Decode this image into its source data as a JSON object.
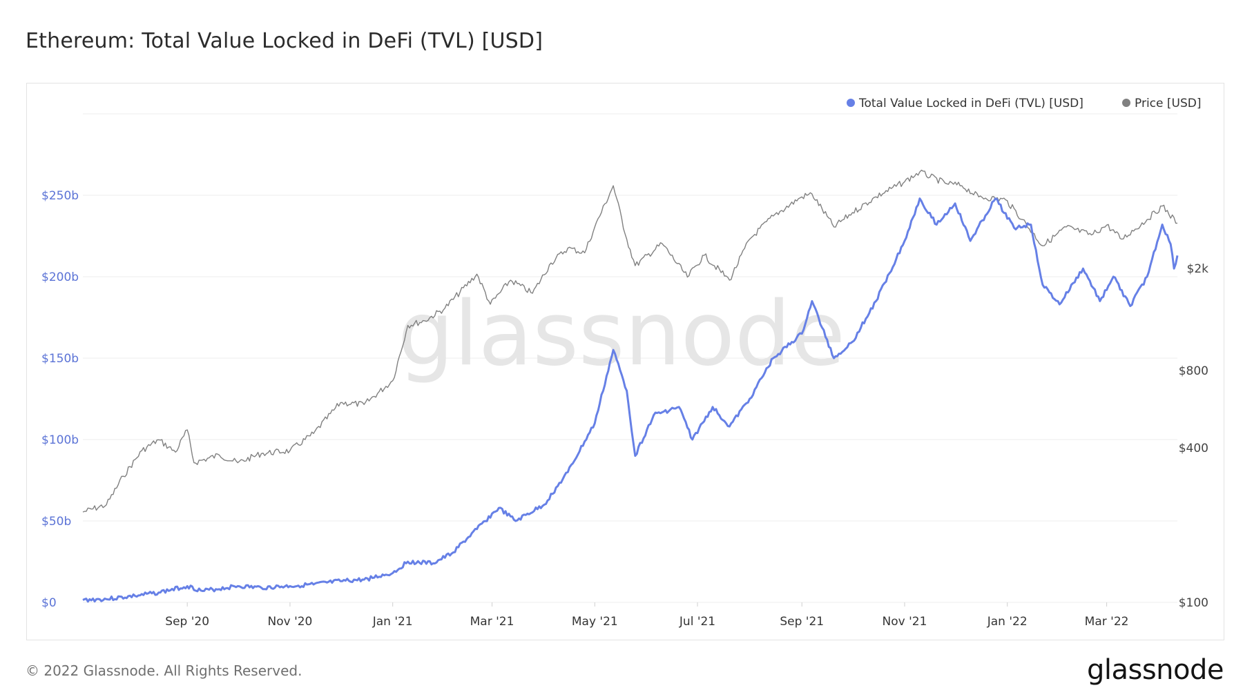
{
  "header": {
    "title": "Ethereum: Total Value Locked in DeFi (TVL) [USD]"
  },
  "footer": {
    "copyright": "© 2022 Glassnode. All Rights Reserved.",
    "brand": "glassnode"
  },
  "watermark": "glassnode",
  "colors": {
    "tvl": "#6680e6",
    "price": "#808080",
    "grid": "#ececec",
    "left_axis_text": "#5b73d6",
    "right_axis_text": "#444444"
  },
  "chart_data": {
    "type": "line",
    "title": "Ethereum: Total Value Locked in DeFi (TVL) [USD]",
    "x_ticks": [
      {
        "date": "2020-09-01",
        "label": "Sep '20"
      },
      {
        "date": "2020-11-01",
        "label": "Nov '20"
      },
      {
        "date": "2021-01-01",
        "label": "Jan '21"
      },
      {
        "date": "2021-03-01",
        "label": "Mar '21"
      },
      {
        "date": "2021-05-01",
        "label": "May '21"
      },
      {
        "date": "2021-07-01",
        "label": "Jul '21"
      },
      {
        "date": "2021-09-01",
        "label": "Sep '21"
      },
      {
        "date": "2021-11-01",
        "label": "Nov '21"
      },
      {
        "date": "2022-01-01",
        "label": "Jan '22"
      },
      {
        "date": "2022-03-01",
        "label": "Mar '22"
      }
    ],
    "x_range": [
      "2020-07-01",
      "2022-04-12"
    ],
    "left_axis": {
      "scale": "linear",
      "range": [
        0,
        300
      ],
      "ticks": [
        {
          "value": 0,
          "label": "$0"
        },
        {
          "value": 50,
          "label": "$50b"
        },
        {
          "value": 100,
          "label": "$100b"
        },
        {
          "value": 150,
          "label": "$150b"
        },
        {
          "value": 200,
          "label": "$200b"
        },
        {
          "value": 250,
          "label": "$250b"
        }
      ]
    },
    "right_axis": {
      "scale": "log",
      "range": [
        100,
        8000
      ],
      "ticks": [
        {
          "value": 100,
          "label": "$100"
        },
        {
          "value": 400,
          "label": "$400"
        },
        {
          "value": 800,
          "label": "$800"
        },
        {
          "value": 2000,
          "label": "$2k"
        }
      ]
    },
    "grid": true,
    "legend": "top-right",
    "series": [
      {
        "name": "Total Value Locked in DeFi (TVL) [USD]",
        "axis": "left",
        "unit": "billion USD",
        "points": [
          [
            "2020-07-01",
            1.5
          ],
          [
            "2020-07-15",
            2
          ],
          [
            "2020-08-01",
            4
          ],
          [
            "2020-08-15",
            6
          ],
          [
            "2020-09-01",
            10
          ],
          [
            "2020-09-10",
            7
          ],
          [
            "2020-10-01",
            10
          ],
          [
            "2020-10-15",
            9
          ],
          [
            "2020-11-01",
            10
          ],
          [
            "2020-11-15",
            11
          ],
          [
            "2020-12-01",
            13
          ],
          [
            "2020-12-15",
            14
          ],
          [
            "2021-01-01",
            18
          ],
          [
            "2021-01-10",
            25
          ],
          [
            "2021-01-25",
            24
          ],
          [
            "2021-02-05",
            30
          ],
          [
            "2021-02-20",
            45
          ],
          [
            "2021-03-05",
            58
          ],
          [
            "2021-03-15",
            50
          ],
          [
            "2021-04-01",
            60
          ],
          [
            "2021-04-15",
            80
          ],
          [
            "2021-05-01",
            110
          ],
          [
            "2021-05-12",
            155
          ],
          [
            "2021-05-20",
            130
          ],
          [
            "2021-05-25",
            90
          ],
          [
            "2021-06-05",
            115
          ],
          [
            "2021-06-20",
            120
          ],
          [
            "2021-06-28",
            100
          ],
          [
            "2021-07-10",
            120
          ],
          [
            "2021-07-20",
            108
          ],
          [
            "2021-08-01",
            125
          ],
          [
            "2021-08-15",
            150
          ],
          [
            "2021-09-01",
            165
          ],
          [
            "2021-09-07",
            185
          ],
          [
            "2021-09-20",
            150
          ],
          [
            "2021-10-01",
            160
          ],
          [
            "2021-10-15",
            185
          ],
          [
            "2021-11-01",
            222
          ],
          [
            "2021-11-10",
            248
          ],
          [
            "2021-11-20",
            232
          ],
          [
            "2021-12-01",
            245
          ],
          [
            "2021-12-10",
            222
          ],
          [
            "2021-12-25",
            248
          ],
          [
            "2022-01-05",
            230
          ],
          [
            "2022-01-15",
            232
          ],
          [
            "2022-01-22",
            195
          ],
          [
            "2022-02-01",
            183
          ],
          [
            "2022-02-15",
            205
          ],
          [
            "2022-02-25",
            185
          ],
          [
            "2022-03-05",
            200
          ],
          [
            "2022-03-15",
            182
          ],
          [
            "2022-03-25",
            200
          ],
          [
            "2022-04-03",
            232
          ],
          [
            "2022-04-08",
            220
          ],
          [
            "2022-04-10",
            205
          ],
          [
            "2022-04-12",
            213
          ]
        ]
      },
      {
        "name": "Price [USD]",
        "axis": "right",
        "unit": "USD",
        "points": [
          [
            "2020-07-01",
            225
          ],
          [
            "2020-07-15",
            240
          ],
          [
            "2020-07-25",
            310
          ],
          [
            "2020-08-05",
            390
          ],
          [
            "2020-08-15",
            430
          ],
          [
            "2020-08-25",
            385
          ],
          [
            "2020-09-01",
            470
          ],
          [
            "2020-09-05",
            350
          ],
          [
            "2020-09-20",
            375
          ],
          [
            "2020-10-01",
            350
          ],
          [
            "2020-10-15",
            380
          ],
          [
            "2020-11-01",
            390
          ],
          [
            "2020-11-15",
            455
          ],
          [
            "2020-12-01",
            600
          ],
          [
            "2020-12-15",
            590
          ],
          [
            "2021-01-01",
            730
          ],
          [
            "2021-01-10",
            1200
          ],
          [
            "2021-01-20",
            1250
          ],
          [
            "2021-02-01",
            1400
          ],
          [
            "2021-02-20",
            1900
          ],
          [
            "2021-02-28",
            1450
          ],
          [
            "2021-03-12",
            1800
          ],
          [
            "2021-03-25",
            1600
          ],
          [
            "2021-04-05",
            2100
          ],
          [
            "2021-04-15",
            2400
          ],
          [
            "2021-04-25",
            2300
          ],
          [
            "2021-05-01",
            2900
          ],
          [
            "2021-05-12",
            4200
          ],
          [
            "2021-05-20",
            2600
          ],
          [
            "2021-05-25",
            2050
          ],
          [
            "2021-06-10",
            2500
          ],
          [
            "2021-06-25",
            1850
          ],
          [
            "2021-07-05",
            2250
          ],
          [
            "2021-07-20",
            1800
          ],
          [
            "2021-08-01",
            2600
          ],
          [
            "2021-08-15",
            3200
          ],
          [
            "2021-09-01",
            3800
          ],
          [
            "2021-09-07",
            3900
          ],
          [
            "2021-09-20",
            2900
          ],
          [
            "2021-10-01",
            3300
          ],
          [
            "2021-10-15",
            3800
          ],
          [
            "2021-11-01",
            4350
          ],
          [
            "2021-11-10",
            4750
          ],
          [
            "2021-11-25",
            4300
          ],
          [
            "2021-12-05",
            4200
          ],
          [
            "2021-12-15",
            3800
          ],
          [
            "2021-12-31",
            3700
          ],
          [
            "2022-01-10",
            3100
          ],
          [
            "2022-01-22",
            2450
          ],
          [
            "2022-02-05",
            2900
          ],
          [
            "2022-02-20",
            2700
          ],
          [
            "2022-03-01",
            2950
          ],
          [
            "2022-03-10",
            2600
          ],
          [
            "2022-03-25",
            3100
          ],
          [
            "2022-04-03",
            3500
          ],
          [
            "2022-04-12",
            3000
          ]
        ]
      }
    ]
  }
}
